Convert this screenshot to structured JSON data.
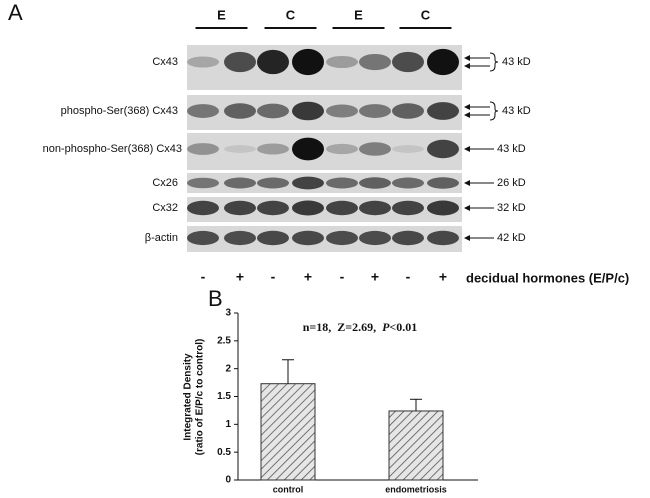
{
  "panel_a": {
    "label": "A",
    "group_labels": [
      "E",
      "C",
      "E",
      "C"
    ],
    "blots": [
      {
        "name": "Cx43",
        "size": "43 kD"
      },
      {
        "name": "phospho-Ser(368) Cx43",
        "size": "43 kD"
      },
      {
        "name": "non-phospho-Ser(368) Cx43",
        "size": "43 kD"
      },
      {
        "name": "Cx26",
        "size": "26 kD"
      },
      {
        "name": "Cx32",
        "size": "32 kD"
      },
      {
        "name": "β-actin",
        "size": "42 kD"
      }
    ],
    "treatment_signs": [
      "-",
      "+",
      "-",
      "+",
      "-",
      "+",
      "-",
      "+"
    ],
    "treatment_label": "decidual hormones (E/P/c)"
  },
  "chart_data": {
    "type": "bar",
    "panel_label": "B",
    "ylabel": [
      "Integrated Density",
      "(ratio of E/P/c to control)"
    ],
    "annotation": [
      "n=18,  Z=2.69,  ",
      "P",
      "<0.01"
    ],
    "categories": [
      "control",
      "endometriosis"
    ],
    "values": [
      1.73,
      1.24
    ],
    "errors": [
      0.43,
      0.21
    ],
    "color": "#bfbfbf",
    "ylim": [
      0,
      3
    ],
    "yticks": [
      0,
      0.5,
      1,
      1.5,
      2,
      2.5,
      3
    ]
  }
}
